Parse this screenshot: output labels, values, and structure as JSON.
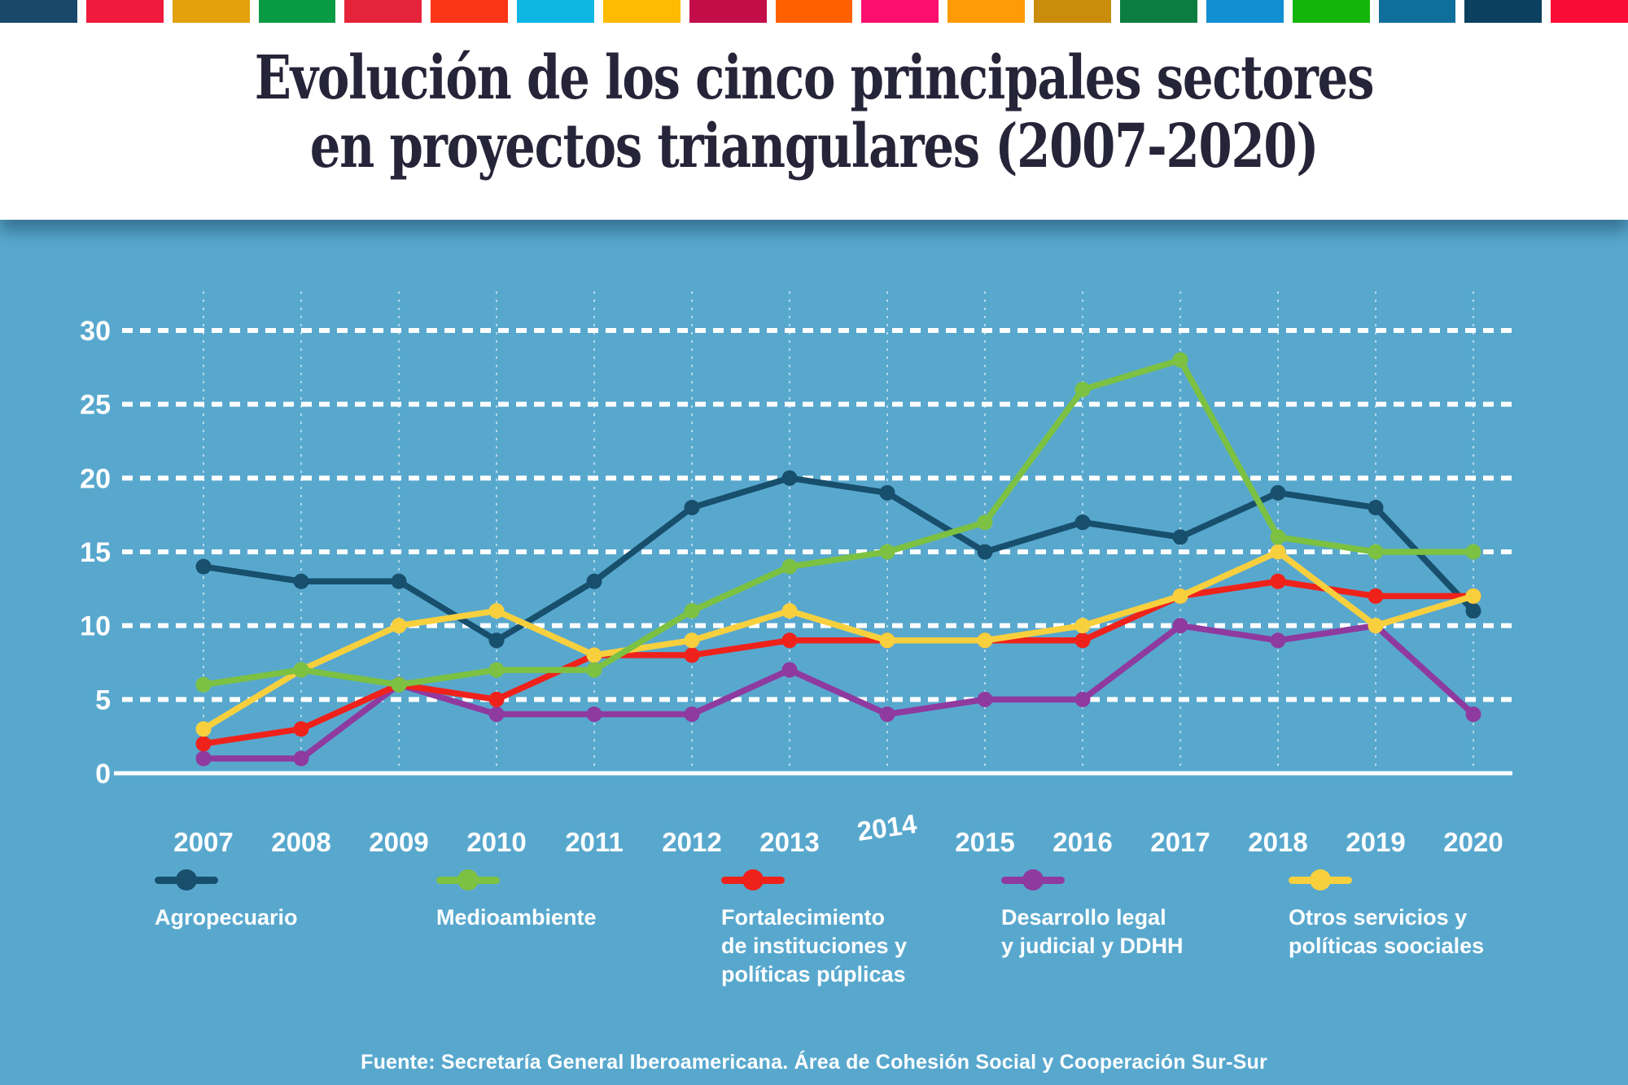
{
  "top_bar": {
    "colors": [
      "#19486b",
      "#ef1a3d",
      "#e3a10c",
      "#089b44",
      "#e5243b",
      "#fa3517",
      "#0db6e3",
      "#febb02",
      "#c30d49",
      "#ff6100",
      "#fa0f6e",
      "#ff9b06",
      "#c98d0b",
      "#0b7d41",
      "#128fd2",
      "#14b50a",
      "#0f6f9c",
      "#0b405e",
      "#fb0c35"
    ]
  },
  "title": {
    "line1": "Evolución de los cinco principales sectores",
    "line2": "en proyectos triangulares (2007-2020)"
  },
  "chart_data": {
    "type": "line",
    "x": [
      "2007",
      "2008",
      "2009",
      "2010",
      "2011",
      "2012",
      "2013",
      "2014",
      "2015",
      "2016",
      "2017",
      "2018",
      "2019",
      "2020"
    ],
    "ylim": [
      0,
      30
    ],
    "yticks": [
      0,
      5,
      10,
      15,
      20,
      25,
      30
    ],
    "grid": "horizontal dashed white lines, vertical dotted white lines",
    "legend_position": "bottom",
    "background_color": "#58a8ce",
    "series": [
      {
        "id": "agropecuario",
        "name": "Agropecuario",
        "color": "#174f6d",
        "values": [
          14,
          13,
          13,
          9,
          13,
          18,
          20,
          19,
          15,
          17,
          16,
          19,
          18,
          11
        ]
      },
      {
        "id": "medioambiente",
        "name": "Medioambiente",
        "color": "#7cc142",
        "values": [
          6,
          7,
          6,
          7,
          7,
          11,
          14,
          15,
          17,
          26,
          28,
          16,
          15,
          15
        ]
      },
      {
        "id": "fortalecimiento-instituciones",
        "name": "Fortalecimiento de instituciones y políticas púplicas",
        "color": "#ef221b",
        "values": [
          2,
          3,
          6,
          5,
          8,
          8,
          9,
          9,
          9,
          9,
          12,
          13,
          12,
          12
        ]
      },
      {
        "id": "desarrollo-legal",
        "name": "Desarrollo legal y judicial y DDHH",
        "color": "#8f3a9f",
        "values": [
          1,
          1,
          6,
          4,
          4,
          4,
          7,
          4,
          5,
          5,
          10,
          9,
          10,
          4
        ]
      },
      {
        "id": "otros-servicios",
        "name": "Otros servicios y políticas soociales",
        "color": "#f8d03e",
        "values": [
          3,
          7,
          10,
          11,
          8,
          9,
          11,
          9,
          9,
          10,
          12,
          15,
          10,
          12
        ]
      }
    ]
  },
  "legend": {
    "items": [
      {
        "label": "Agropecuario"
      },
      {
        "label": "Medioambiente"
      },
      {
        "label": "Fortalecimiento\nde instituciones y\npolíticas púplicas"
      },
      {
        "label": "Desarrollo legal\ny judicial y DDHH"
      },
      {
        "label": "Otros servicios y\npolíticas soociales"
      }
    ]
  },
  "footer": {
    "source": "Fuente: Secretaría General Iberoamericana. Área de Cohesión Social y Cooperación Sur-Sur"
  }
}
